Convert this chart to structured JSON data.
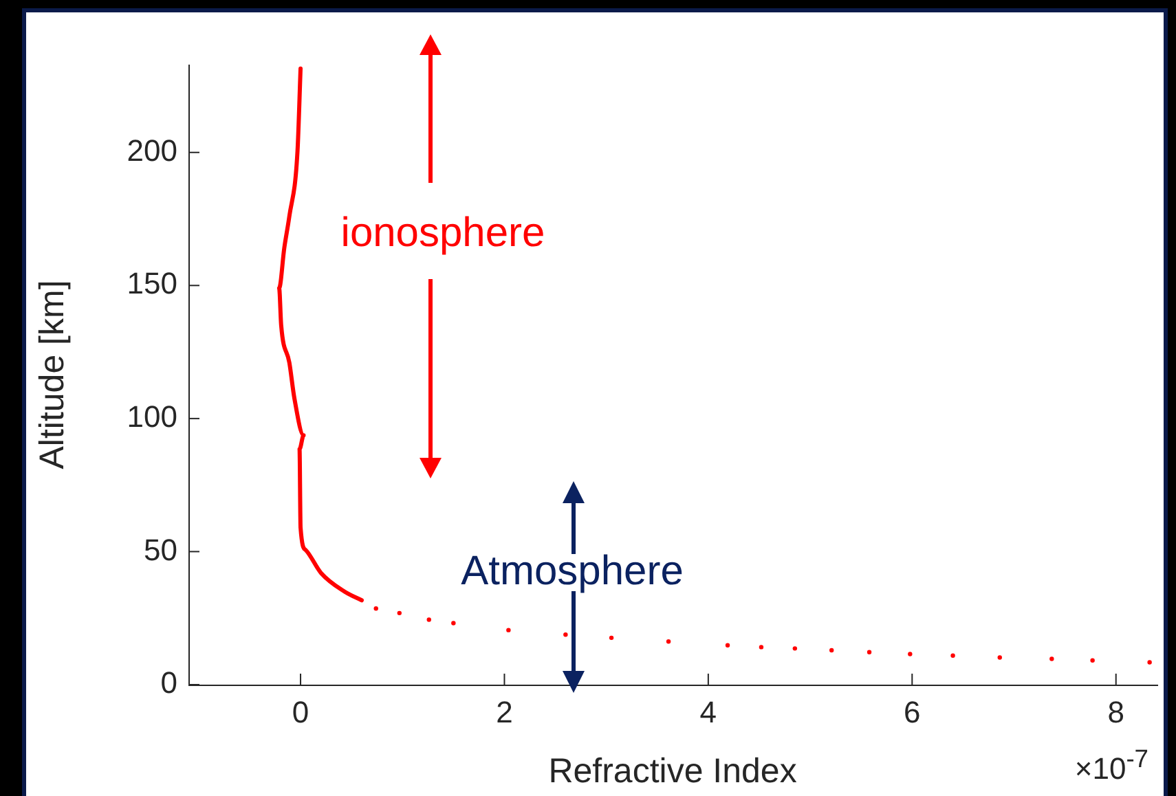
{
  "chart_data": {
    "type": "line",
    "xlabel": "Refractive Index",
    "ylabel": "Altitude [km]",
    "xlim": [
      -1.1,
      8.4
    ],
    "xticks": [
      0,
      2,
      4,
      6,
      8
    ],
    "ylim": [
      0,
      233
    ],
    "yticks": [
      0,
      50,
      100,
      150,
      200
    ],
    "grid": false,
    "legend": false,
    "annotations": [
      "ionosphere",
      "Atmosphere",
      "×10$^{-7}$"
    ],
    "series": [
      {
        "color": "#ff0000",
        "x": [
          0.0,
          -0.03,
          -0.11,
          -0.16,
          -0.21,
          -0.19,
          -0.11,
          -0.06,
          0.03,
          -0.01,
          0.0,
          0.05,
          0.2,
          0.43,
          0.6
        ],
        "values": [
          231.5,
          200.5,
          176,
          164,
          149,
          135,
          121,
          107.5,
          93.7,
          88.5,
          59,
          50.6,
          42,
          35,
          31.7
        ]
      },
      {
        "type": "scatter",
        "color": "#ff0000",
        "marker": "circle",
        "x": [
          0.74,
          0.97,
          1.26,
          1.5,
          2.04,
          2.6,
          3.05,
          3.61,
          4.19,
          4.52,
          4.85,
          5.21,
          5.58,
          5.98,
          6.4,
          6.86,
          7.37,
          7.77,
          8.33
        ],
        "values": [
          28.6,
          26.9,
          24.4,
          23.1,
          20.5,
          18.8,
          17.6,
          16.2,
          14.8,
          14.1,
          13.6,
          12.9,
          12.2,
          11.5,
          10.9,
          10.2,
          9.7,
          9.1,
          8.4
        ]
      }
    ]
  }
}
